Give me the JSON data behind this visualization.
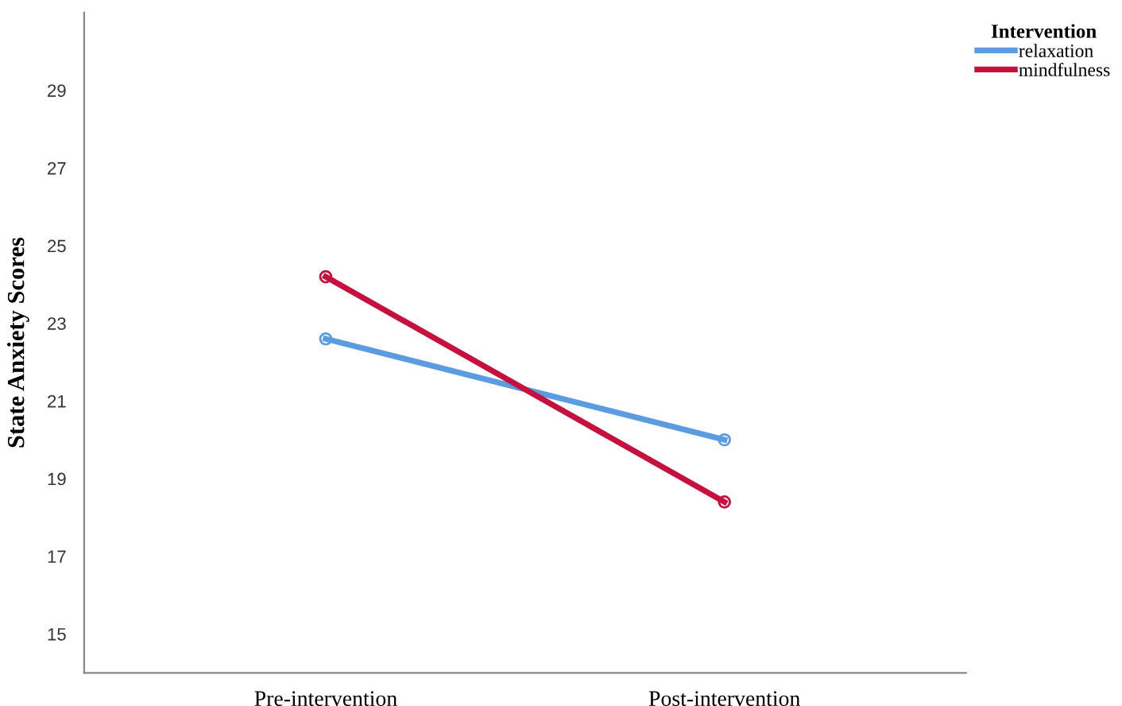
{
  "chart_data": {
    "type": "line",
    "ylabel": "State Anxiety Scores",
    "legend_title": "Intervention",
    "categories": [
      "Pre-intervention",
      "Post-intervention"
    ],
    "series": [
      {
        "name": "relaxation",
        "color": "#5b9be0",
        "values": [
          22.6,
          20.0
        ]
      },
      {
        "name": "mindfulness",
        "color": "#c8103e",
        "values": [
          24.2,
          18.4
        ]
      }
    ],
    "ylim": [
      14,
      31
    ],
    "yticks": [
      15,
      17,
      19,
      21,
      23,
      25,
      27,
      29
    ],
    "marker": "circle",
    "line_style": "solid",
    "legend": "top right",
    "grid": false
  }
}
